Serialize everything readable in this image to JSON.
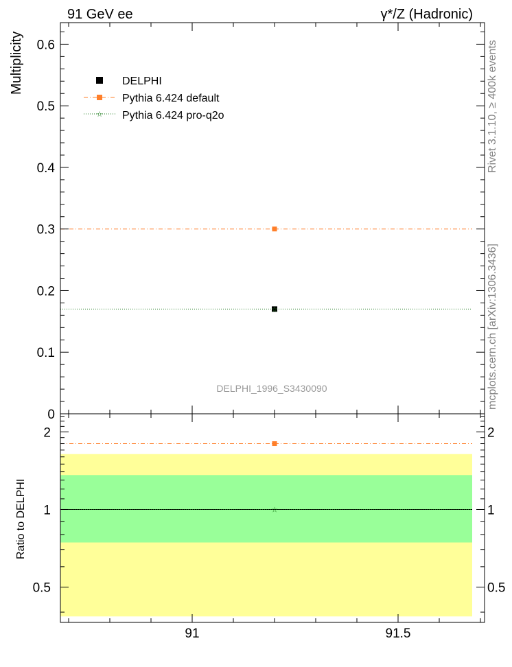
{
  "header": {
    "left": "91 GeV ee",
    "right": "γ*/Z (Hadronic)"
  },
  "side_text": {
    "rivet": "Rivet 3.1.10, ≥ 400k events",
    "mcplots": "mcplots.cern.ch [arXiv:1306.3436]"
  },
  "chart_data": [
    {
      "type": "scatter",
      "ylabel": "Multiplicity",
      "watermark": "DELPHI_1996_S3430090",
      "xlim": [
        90.68,
        91.71
      ],
      "ylim": [
        0,
        0.635
      ],
      "yticks": [
        0,
        0.1,
        0.2,
        0.3,
        0.4,
        0.5,
        0.6
      ],
      "ytick_labels": [
        "0",
        "0.1",
        "0.2",
        "0.3",
        "0.4",
        "0.5",
        "0.6"
      ],
      "x_range": [
        90.68,
        91.68
      ],
      "legend_position": "top-left",
      "series": [
        {
          "name": "DELPHI",
          "color": "#000000",
          "marker": "square",
          "x": [
            91.2
          ],
          "y": [
            0.17
          ]
        },
        {
          "name": "Pythia 6.424 default",
          "color": "#ff7f2a",
          "marker": "square",
          "line": "dash-dot",
          "x": [
            91.2
          ],
          "y": [
            0.3
          ]
        },
        {
          "name": "Pythia 6.424 pro-q2o",
          "color": "#1a7a1a",
          "marker": "star",
          "line": "dotted",
          "x": [
            91.2
          ],
          "y": [
            0.17
          ]
        }
      ]
    },
    {
      "type": "scatter",
      "ylabel": "Ratio to DELPHI",
      "xlim": [
        90.68,
        91.71
      ],
      "ylim": [
        0.365,
        2.35
      ],
      "yscale": "log",
      "yticks": [
        0.5,
        1,
        2
      ],
      "ytick_labels": [
        "0.5",
        "1",
        "2"
      ],
      "xticks": [
        91,
        91.5
      ],
      "xtick_labels": [
        "91",
        "91.5"
      ],
      "x_range": [
        90.68,
        91.68
      ],
      "bands": [
        {
          "name": "outer",
          "color": "#ffff99",
          "lo": 0.385,
          "hi": 1.64
        },
        {
          "name": "inner",
          "color": "#99ff99",
          "lo": 0.745,
          "hi": 1.36
        }
      ],
      "series": [
        {
          "name": "Pythia 6.424 default",
          "color": "#ff7f2a",
          "marker": "square",
          "line": "dash-dot",
          "x": [
            91.2
          ],
          "y": [
            1.8
          ]
        },
        {
          "name": "Pythia 6.424 pro-q2o",
          "color": "#1a7a1a",
          "marker": "star",
          "line": "dotted",
          "x": [
            91.2
          ],
          "y": [
            1.0
          ]
        }
      ]
    }
  ]
}
